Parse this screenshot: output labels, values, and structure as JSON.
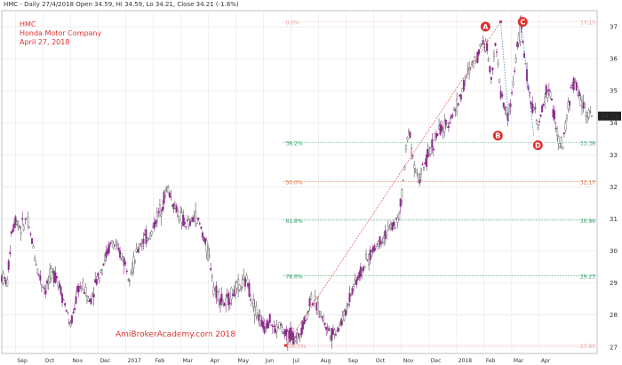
{
  "header": "HMC - Daily 27/4/2018 Open 34.59, Hi 34.59, Lo 34.21, Close 34.21 (-1.6%)",
  "titles": [
    "HMC",
    "Honda Motor Company",
    "April 27, 2018"
  ],
  "watermark": "AmiBrokerAcademy.com  2018",
  "last_price_label": "34.21",
  "colors": {
    "candle": "#8a2c8a",
    "candle_alt": "#555555",
    "accent": "#e0312f",
    "fib0": "#f4a0a0",
    "fib382": "#2fa06a",
    "fib50": "#e06a3a",
    "fib618": "#2fa06a",
    "fib786": "#2fa06a",
    "fib100": "#f4a0a0",
    "trend": "#e0312f"
  },
  "chart_data": {
    "type": "candlestick",
    "title": "HMC",
    "ylim": [
      26.8,
      37.5
    ],
    "y_ticks": [
      27,
      28,
      29,
      30,
      31,
      32,
      33,
      34,
      35,
      36,
      37
    ],
    "x_ticks": [
      {
        "label": "Sep",
        "x": 0.5
      },
      {
        "label": "Oct",
        "x": 1.5
      },
      {
        "label": "Nov",
        "x": 2.5
      },
      {
        "label": "Dec",
        "x": 3.5
      },
      {
        "label": "2017",
        "x": 4.5
      },
      {
        "label": "Feb",
        "x": 5.5
      },
      {
        "label": "Mar",
        "x": 6.5
      },
      {
        "label": "Apr",
        "x": 7.5
      },
      {
        "label": "May",
        "x": 8.5
      },
      {
        "label": "Jun",
        "x": 9.5
      },
      {
        "label": "Jul",
        "x": 10.5
      },
      {
        "label": "Aug",
        "x": 11.5
      },
      {
        "label": "Sep",
        "x": 12.5
      },
      {
        "label": "Oct",
        "x": 13.5
      },
      {
        "label": "Nov",
        "x": 14.5
      },
      {
        "label": "Dec",
        "x": 15.5
      },
      {
        "label": "2018",
        "x": 16.5
      },
      {
        "label": "Feb",
        "x": 17.5
      },
      {
        "label": "Mar",
        "x": 18.5
      },
      {
        "label": "Apr",
        "x": 19.5
      }
    ],
    "x_range": [
      0,
      20.6
    ],
    "price_path": [
      [
        0.0,
        29.2
      ],
      [
        0.2,
        29.0
      ],
      [
        0.35,
        30.6
      ],
      [
        0.5,
        31.0
      ],
      [
        0.7,
        30.7
      ],
      [
        0.9,
        31.0
      ],
      [
        1.1,
        30.3
      ],
      [
        1.3,
        29.4
      ],
      [
        1.45,
        29.0
      ],
      [
        1.6,
        28.8
      ],
      [
        1.8,
        29.3
      ],
      [
        2.0,
        29.2
      ],
      [
        2.2,
        28.6
      ],
      [
        2.4,
        28.0
      ],
      [
        2.5,
        27.6
      ],
      [
        2.65,
        28.3
      ],
      [
        2.8,
        28.9
      ],
      [
        3.0,
        28.8
      ],
      [
        3.2,
        28.4
      ],
      [
        3.4,
        29.0
      ],
      [
        3.6,
        29.4
      ],
      [
        3.8,
        29.9
      ],
      [
        4.0,
        30.3
      ],
      [
        4.2,
        30.0
      ],
      [
        4.4,
        29.8
      ],
      [
        4.6,
        29.3
      ],
      [
        4.8,
        29.6
      ],
      [
        5.0,
        30.2
      ],
      [
        5.2,
        30.4
      ],
      [
        5.4,
        30.5
      ],
      [
        5.6,
        31.0
      ],
      [
        5.8,
        31.4
      ],
      [
        6.0,
        32.0
      ],
      [
        6.2,
        31.5
      ],
      [
        6.4,
        31.2
      ],
      [
        6.6,
        30.9
      ],
      [
        6.8,
        30.8
      ],
      [
        7.0,
        31.1
      ],
      [
        7.2,
        30.8
      ],
      [
        7.4,
        30.2
      ],
      [
        7.6,
        29.5
      ],
      [
        7.7,
        28.8
      ],
      [
        7.9,
        28.6
      ],
      [
        8.1,
        28.3
      ],
      [
        8.3,
        28.6
      ],
      [
        8.5,
        28.8
      ],
      [
        8.7,
        28.9
      ],
      [
        8.9,
        29.1
      ],
      [
        9.1,
        28.4
      ],
      [
        9.3,
        28.0
      ],
      [
        9.5,
        27.6
      ],
      [
        9.7,
        27.9
      ],
      [
        9.9,
        27.5
      ],
      [
        10.1,
        27.7
      ],
      [
        10.3,
        27.3
      ],
      [
        10.5,
        27.4
      ],
      [
        10.7,
        27.2
      ],
      [
        10.9,
        27.7
      ],
      [
        11.1,
        28.0
      ],
      [
        11.2,
        28.6
      ],
      [
        11.4,
        28.3
      ],
      [
        11.6,
        28.0
      ],
      [
        11.8,
        27.6
      ],
      [
        12.0,
        27.4
      ],
      [
        12.2,
        27.6
      ],
      [
        12.4,
        27.9
      ],
      [
        12.6,
        28.5
      ],
      [
        12.8,
        29.0
      ],
      [
        13.0,
        29.3
      ],
      [
        13.2,
        29.6
      ],
      [
        13.4,
        29.9
      ],
      [
        13.6,
        30.2
      ],
      [
        13.8,
        30.4
      ],
      [
        14.0,
        30.6
      ],
      [
        14.2,
        30.8
      ],
      [
        14.4,
        31.0
      ],
      [
        14.5,
        31.6
      ],
      [
        14.6,
        32.5
      ],
      [
        14.7,
        33.4
      ],
      [
        14.8,
        33.8
      ],
      [
        14.9,
        33.0
      ],
      [
        15.0,
        32.6
      ],
      [
        15.1,
        32.2
      ],
      [
        15.3,
        32.6
      ],
      [
        15.5,
        33.0
      ],
      [
        15.7,
        33.5
      ],
      [
        15.9,
        33.8
      ],
      [
        16.1,
        33.8
      ],
      [
        16.3,
        34.2
      ],
      [
        16.5,
        34.5
      ],
      [
        16.7,
        35.0
      ],
      [
        16.9,
        35.5
      ],
      [
        17.1,
        35.9
      ],
      [
        17.3,
        36.2
      ],
      [
        17.45,
        36.6
      ],
      [
        17.6,
        36.4
      ],
      [
        17.75,
        35.4
      ],
      [
        17.9,
        36.5
      ],
      [
        18.0,
        35.8
      ],
      [
        18.1,
        35.0
      ],
      [
        18.25,
        34.4
      ],
      [
        18.4,
        34.2
      ],
      [
        18.55,
        35.2
      ],
      [
        18.7,
        36.4
      ],
      [
        18.85,
        37.0
      ],
      [
        19.0,
        35.8
      ],
      [
        19.15,
        34.8
      ],
      [
        19.3,
        34.5
      ],
      [
        19.45,
        33.8
      ],
      [
        19.6,
        34.3
      ],
      [
        19.75,
        35.0
      ],
      [
        19.9,
        34.9
      ],
      [
        20.05,
        34.2
      ],
      [
        20.2,
        33.4
      ],
      [
        20.35,
        33.2
      ],
      [
        20.5,
        34.2
      ],
      [
        20.65,
        35.0
      ],
      [
        20.8,
        35.3
      ],
      [
        20.95,
        34.8
      ],
      [
        21.1,
        34.6
      ],
      [
        21.25,
        34.3
      ],
      [
        21.4,
        34.21
      ]
    ],
    "fib_levels": [
      {
        "pct": "0.0%",
        "price": "37.15",
        "value": 37.15,
        "color": "#f4a0a0"
      },
      {
        "pct": "38.2%",
        "price": "33.38",
        "value": 33.38,
        "color": "#2fa06a"
      },
      {
        "pct": "50.0%",
        "price": "32.17",
        "value": 32.17,
        "color": "#e06a3a"
      },
      {
        "pct": "61.8%",
        "price": "30.96",
        "value": 30.96,
        "color": "#2fa06a"
      },
      {
        "pct": "78.6%",
        "price": "29.23",
        "value": 29.23,
        "color": "#2fa06a"
      },
      {
        "pct": "100.0%",
        "price": "27.05",
        "value": 27.05,
        "color": "#f4a0a0"
      }
    ],
    "trendline": {
      "from": [
        10.3,
        27.05
      ],
      "to": [
        18.1,
        37.15
      ]
    },
    "markers": [
      {
        "label": "A",
        "x": 17.55,
        "y": 37.0
      },
      {
        "label": "B",
        "x": 18.0,
        "y": 33.6
      },
      {
        "label": "C",
        "x": 18.9,
        "y": 37.15
      },
      {
        "label": "D",
        "x": 19.45,
        "y": 33.3
      }
    ],
    "abcd_lines": [
      {
        "from": [
          18.1,
          37.15
        ],
        "to": [
          18.4,
          34.0
        ]
      },
      {
        "from": [
          18.85,
          37.1
        ],
        "to": [
          19.3,
          33.6
        ]
      }
    ]
  }
}
